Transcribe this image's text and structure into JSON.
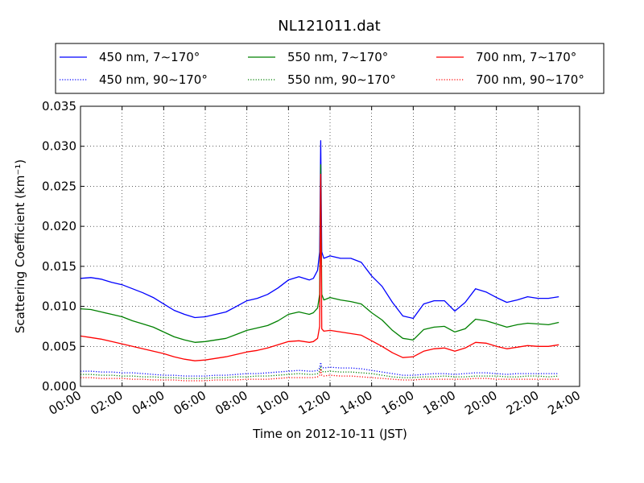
{
  "chart_data": {
    "type": "line",
    "title": "NL121011.dat",
    "xlabel": "Time on 2012-10-11 (JST)",
    "ylabel": "Scattering Coefficient (km⁻¹)",
    "xlim": [
      0,
      24
    ],
    "ylim": [
      0,
      0.035
    ],
    "x_ticks": [
      "00:00",
      "02:00",
      "04:00",
      "06:00",
      "08:00",
      "10:00",
      "12:00",
      "14:00",
      "16:00",
      "18:00",
      "20:00",
      "22:00",
      "24:00"
    ],
    "y_ticks": [
      "0.000",
      "0.005",
      "0.010",
      "0.015",
      "0.020",
      "0.025",
      "0.030",
      "0.035"
    ],
    "grid": true,
    "legend_position": "top",
    "x": [
      0,
      0.5,
      1,
      1.5,
      2,
      2.5,
      3,
      3.5,
      4,
      4.5,
      5,
      5.5,
      6,
      6.5,
      7,
      7.5,
      8,
      8.5,
      9,
      9.5,
      10,
      10.5,
      11,
      11.2,
      11.4,
      11.5,
      11.55,
      11.6,
      11.7,
      12,
      12.5,
      13,
      13.5,
      14,
      14.5,
      15,
      15.5,
      16,
      16.5,
      17,
      17.5,
      18,
      18.5,
      19,
      19.5,
      20,
      20.5,
      21,
      21.5,
      22,
      22.5,
      23
    ],
    "series": [
      {
        "name": "450 nm, 7∼170°",
        "color": "#0000ff",
        "style": "solid",
        "values": [
          0.0135,
          0.0136,
          0.0134,
          0.013,
          0.0127,
          0.0122,
          0.0117,
          0.0111,
          0.0103,
          0.0095,
          0.009,
          0.0086,
          0.0087,
          0.009,
          0.0093,
          0.01,
          0.0107,
          0.011,
          0.0115,
          0.0123,
          0.0133,
          0.0137,
          0.0133,
          0.0135,
          0.0145,
          0.0168,
          0.0307,
          0.0168,
          0.016,
          0.0163,
          0.016,
          0.016,
          0.0155,
          0.0138,
          0.0125,
          0.0105,
          0.0088,
          0.0085,
          0.0103,
          0.0107,
          0.0107,
          0.0094,
          0.0105,
          0.0122,
          0.0118,
          0.0111,
          0.0105,
          0.0108,
          0.0112,
          0.011,
          0.011,
          0.0112
        ]
      },
      {
        "name": "550 nm, 7∼170°",
        "color": "#008000",
        "style": "solid",
        "values": [
          0.0097,
          0.0096,
          0.0093,
          0.009,
          0.0087,
          0.0082,
          0.0078,
          0.0074,
          0.0068,
          0.0062,
          0.0058,
          0.0055,
          0.0056,
          0.0058,
          0.006,
          0.0065,
          0.007,
          0.0073,
          0.0076,
          0.0082,
          0.009,
          0.0093,
          0.009,
          0.0092,
          0.0098,
          0.0115,
          0.0277,
          0.0115,
          0.0108,
          0.0111,
          0.0108,
          0.0106,
          0.0103,
          0.0092,
          0.0083,
          0.007,
          0.006,
          0.0058,
          0.0071,
          0.0074,
          0.0075,
          0.0068,
          0.0072,
          0.0084,
          0.0082,
          0.0078,
          0.0074,
          0.0077,
          0.0079,
          0.0078,
          0.0077,
          0.008
        ]
      },
      {
        "name": "700 nm, 7∼170°",
        "color": "#ff0000",
        "style": "solid",
        "values": [
          0.0063,
          0.0061,
          0.0059,
          0.0056,
          0.0053,
          0.005,
          0.0047,
          0.0044,
          0.0041,
          0.0037,
          0.0034,
          0.0032,
          0.0033,
          0.0035,
          0.0037,
          0.004,
          0.0043,
          0.0045,
          0.0048,
          0.0052,
          0.0056,
          0.0057,
          0.0055,
          0.0056,
          0.006,
          0.0075,
          0.0265,
          0.0072,
          0.0069,
          0.007,
          0.0068,
          0.0066,
          0.0064,
          0.0057,
          0.005,
          0.0042,
          0.0036,
          0.0037,
          0.0044,
          0.0047,
          0.0048,
          0.0044,
          0.0048,
          0.0055,
          0.0054,
          0.005,
          0.0047,
          0.0049,
          0.0051,
          0.005,
          0.005,
          0.0052
        ]
      },
      {
        "name": "450 nm, 90∼170°",
        "color": "#0000ff",
        "style": "dotted",
        "values": [
          0.0019,
          0.0019,
          0.0018,
          0.0018,
          0.0017,
          0.0017,
          0.0016,
          0.0015,
          0.0014,
          0.0014,
          0.0013,
          0.0013,
          0.0013,
          0.0014,
          0.0014,
          0.0015,
          0.0016,
          0.0016,
          0.0017,
          0.0018,
          0.0019,
          0.002,
          0.0019,
          0.0019,
          0.002,
          0.0023,
          0.003,
          0.0024,
          0.0023,
          0.0024,
          0.0023,
          0.0023,
          0.0022,
          0.002,
          0.0018,
          0.0016,
          0.0014,
          0.0014,
          0.0015,
          0.0016,
          0.0016,
          0.0015,
          0.0016,
          0.0017,
          0.0017,
          0.0016,
          0.0015,
          0.0016,
          0.0016,
          0.0016,
          0.0016,
          0.0016
        ]
      },
      {
        "name": "550 nm, 90∼170°",
        "color": "#008000",
        "style": "dotted",
        "values": [
          0.0015,
          0.0015,
          0.0014,
          0.0014,
          0.0013,
          0.0013,
          0.0012,
          0.0012,
          0.0011,
          0.0011,
          0.001,
          0.001,
          0.001,
          0.0011,
          0.0011,
          0.0012,
          0.0012,
          0.0013,
          0.0013,
          0.0014,
          0.0015,
          0.0016,
          0.0015,
          0.0015,
          0.0016,
          0.0019,
          0.0024,
          0.0019,
          0.0018,
          0.0019,
          0.0018,
          0.0018,
          0.0017,
          0.0016,
          0.0014,
          0.0012,
          0.0011,
          0.0011,
          0.0012,
          0.0012,
          0.0013,
          0.0012,
          0.0012,
          0.0013,
          0.0013,
          0.0013,
          0.0012,
          0.0012,
          0.0013,
          0.0013,
          0.0012,
          0.0013
        ]
      },
      {
        "name": "700 nm, 90∼170°",
        "color": "#ff0000",
        "style": "dotted",
        "values": [
          0.0011,
          0.0011,
          0.001,
          0.001,
          0.001,
          0.0009,
          0.0009,
          0.0008,
          0.0008,
          0.0008,
          0.0007,
          0.0007,
          0.0007,
          0.0008,
          0.0008,
          0.0008,
          0.0009,
          0.0009,
          0.0009,
          0.001,
          0.0011,
          0.0011,
          0.0011,
          0.0011,
          0.0012,
          0.0014,
          0.0022,
          0.0014,
          0.0013,
          0.0014,
          0.0013,
          0.0013,
          0.0012,
          0.0011,
          0.001,
          0.0009,
          0.0008,
          0.0008,
          0.0009,
          0.0009,
          0.0009,
          0.0009,
          0.0009,
          0.001,
          0.001,
          0.0009,
          0.0009,
          0.0009,
          0.0009,
          0.0009,
          0.0009,
          0.0009
        ]
      }
    ],
    "legend": {
      "rows": [
        [
          "450 nm, 7∼170°",
          "550 nm, 7∼170°",
          "700 nm, 7∼170°"
        ],
        [
          "450 nm, 90∼170°",
          "550 nm, 90∼170°",
          "700 nm, 90∼170°"
        ]
      ]
    }
  }
}
